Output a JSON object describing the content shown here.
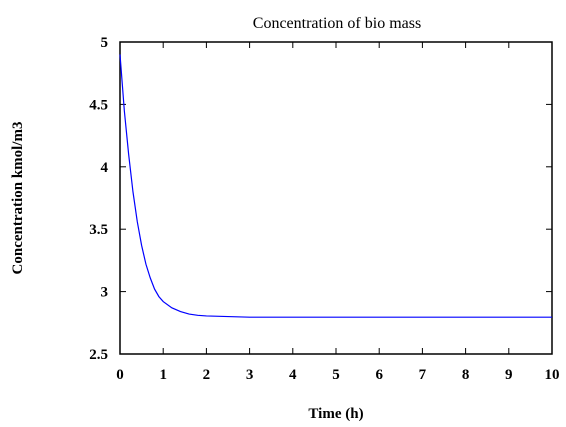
{
  "chart_data": {
    "type": "line",
    "title": "Concentration of bio mass",
    "xlabel": "Time (h)",
    "ylabel": "Concentration kmol/m3",
    "xlim": [
      0,
      10
    ],
    "ylim": [
      2.5,
      5
    ],
    "xticks": [
      "0",
      "1",
      "2",
      "3",
      "4",
      "5",
      "6",
      "7",
      "8",
      "9",
      "10"
    ],
    "yticks": [
      "2.5",
      "3",
      "3.5",
      "4",
      "4.5",
      "5"
    ],
    "grid": false,
    "series": [
      {
        "color": "#0000ff",
        "x": [
          0,
          0.1,
          0.2,
          0.3,
          0.4,
          0.5,
          0.6,
          0.7,
          0.8,
          0.9,
          1.0,
          1.2,
          1.4,
          1.6,
          1.8,
          2.0,
          2.5,
          3.0,
          4.0,
          5.0,
          6.0,
          7.0,
          8.0,
          9.0,
          10.0
        ],
        "y": [
          4.9,
          4.45,
          4.1,
          3.8,
          3.56,
          3.37,
          3.22,
          3.11,
          3.02,
          2.96,
          2.92,
          2.87,
          2.84,
          2.82,
          2.81,
          2.805,
          2.8,
          2.795,
          2.795,
          2.795,
          2.795,
          2.795,
          2.795,
          2.795,
          2.795
        ]
      }
    ]
  }
}
